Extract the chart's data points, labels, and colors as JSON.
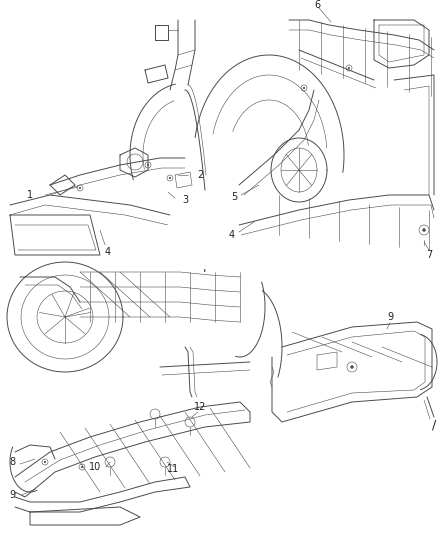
{
  "background_color": "#ffffff",
  "figure_width": 4.38,
  "figure_height": 5.33,
  "dpi": 100,
  "line_color": "#4a4a4a",
  "label_color": "#222222",
  "label_fontsize": 7.0
}
